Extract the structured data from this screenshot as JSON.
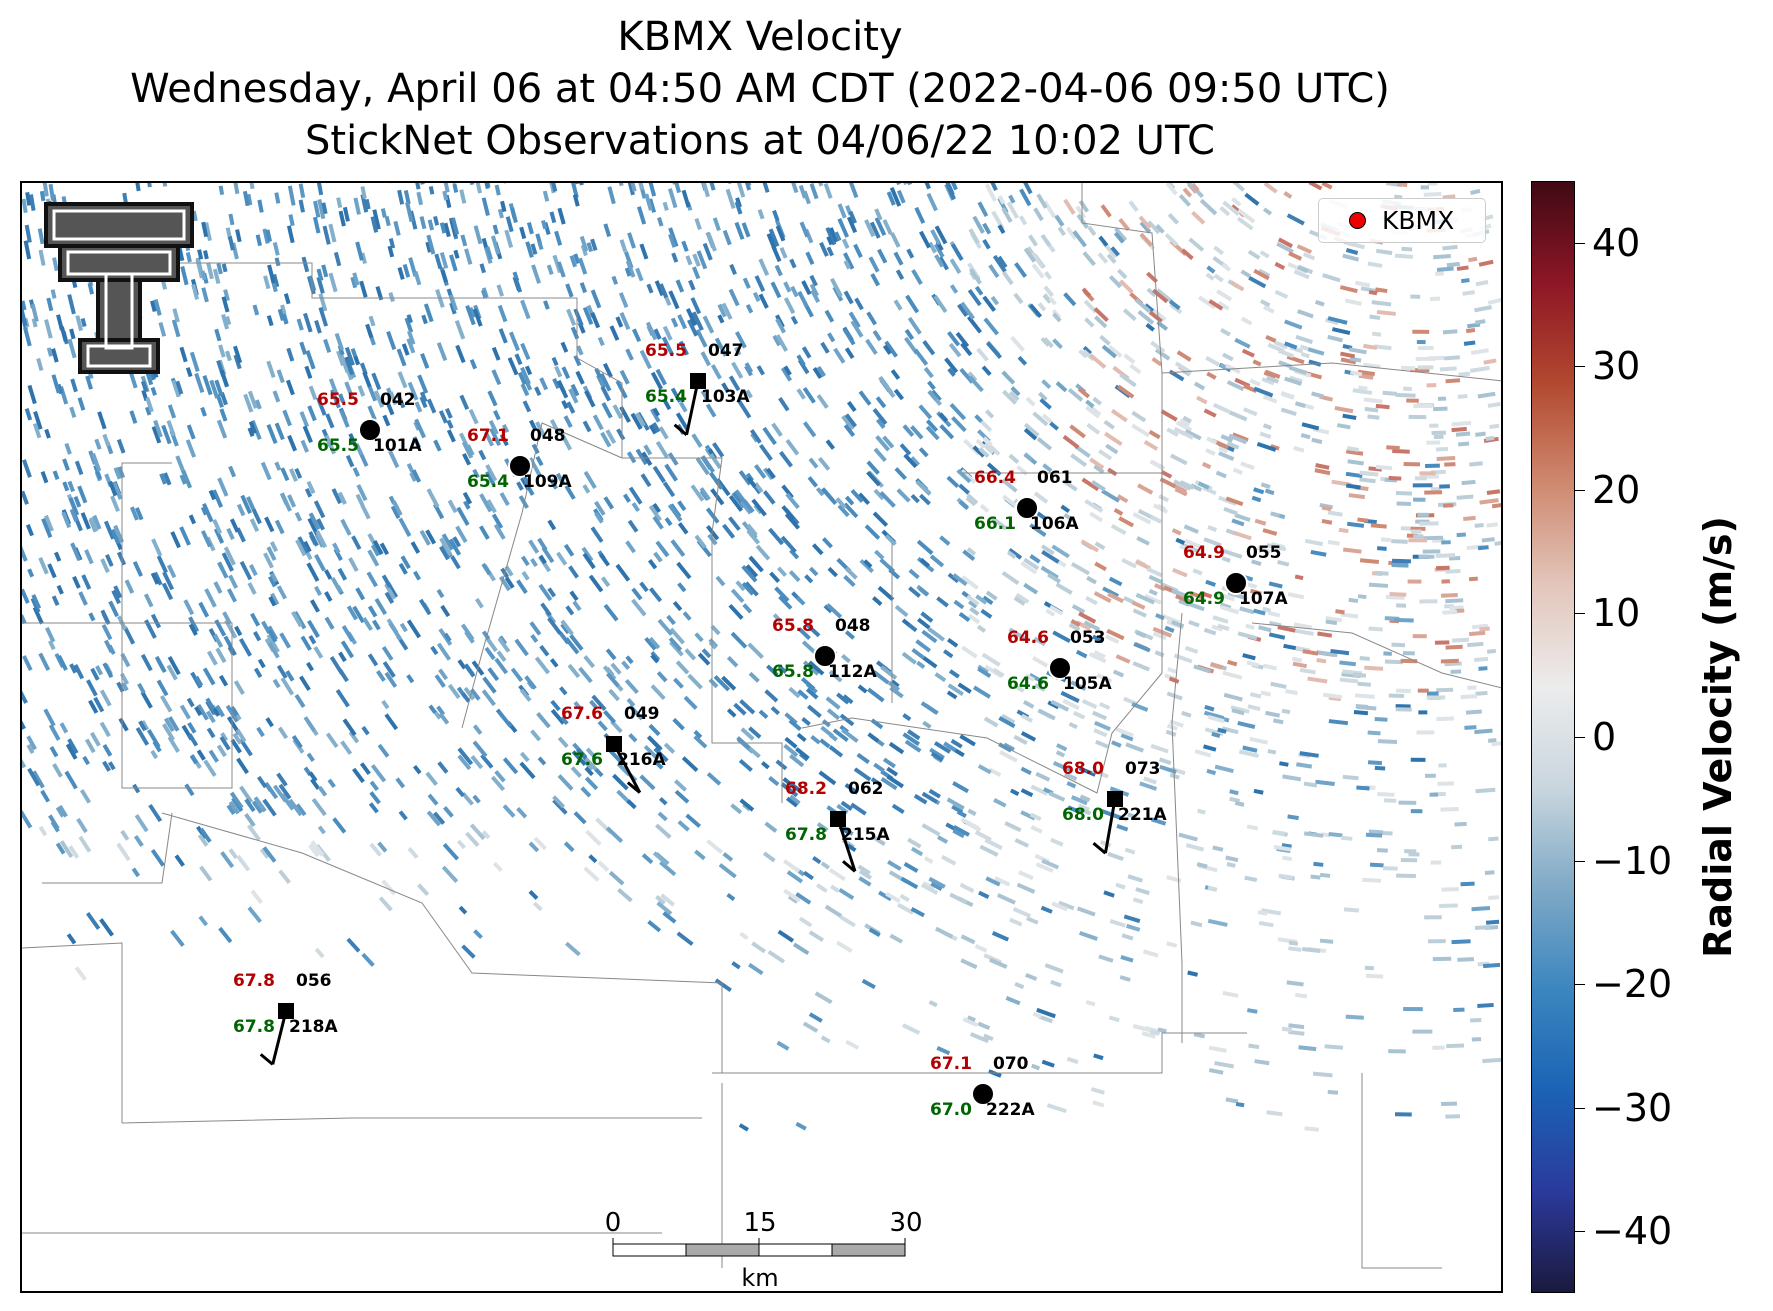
{
  "title": {
    "line1": "KBMX Velocity",
    "line2": "Wednesday, April 06 at 04:50 AM CDT (2022-04-06 09:50 UTC)",
    "line3": "StickNet Observations at 04/06/22 10:02 UTC"
  },
  "legend": {
    "label": "KBMX",
    "marker_color": "#e00000"
  },
  "colorbar": {
    "label": "Radial Velocity (m/s)",
    "min": -45,
    "max": 45,
    "ticks": [
      "40",
      "30",
      "20",
      "10",
      "0",
      "−10",
      "−20",
      "−30",
      "−40"
    ],
    "tick_values": [
      40,
      30,
      20,
      10,
      0,
      -10,
      -20,
      -30,
      -40
    ],
    "colors": [
      "#1a1a3e",
      "#2b3a9c",
      "#1b63b5",
      "#3b86bf",
      "#7fa9c6",
      "#c9d6de",
      "#ececec",
      "#e3c6bc",
      "#cf8a70",
      "#b2492f",
      "#8e1626",
      "#3f0a14"
    ]
  },
  "scalebar": {
    "labels": [
      "0",
      "15",
      "30"
    ],
    "unit": "km"
  },
  "stations": [
    {
      "id": "101A",
      "temp": "65.5",
      "dew": "65.5",
      "dir": "042",
      "marker": "circle"
    },
    {
      "id": "109A",
      "temp": "67.1",
      "dew": "65.4",
      "dir": "048",
      "marker": "circle"
    },
    {
      "id": "103A",
      "temp": "65.5",
      "dew": "65.4",
      "dir": "047",
      "marker": "square"
    },
    {
      "id": "106A",
      "temp": "66.4",
      "dew": "66.1",
      "dir": "061",
      "marker": "circle"
    },
    {
      "id": "107A",
      "temp": "64.9",
      "dew": "64.9",
      "dir": "055",
      "marker": "circle"
    },
    {
      "id": "112A",
      "temp": "65.8",
      "dew": "65.8",
      "dir": "048",
      "marker": "circle"
    },
    {
      "id": "105A",
      "temp": "64.6",
      "dew": "64.6",
      "dir": "053",
      "marker": "circle"
    },
    {
      "id": "216A",
      "temp": "67.6",
      "dew": "67.6",
      "dir": "049",
      "marker": "square"
    },
    {
      "id": "215A",
      "temp": "68.2",
      "dew": "67.8",
      "dir": "062",
      "marker": "square"
    },
    {
      "id": "221A",
      "temp": "68.0",
      "dew": "68.0",
      "dir": "073",
      "marker": "square"
    },
    {
      "id": "218A",
      "temp": "67.8",
      "dew": "67.8",
      "dir": "056",
      "marker": "square"
    },
    {
      "id": "222A",
      "temp": "67.1",
      "dew": "67.0",
      "dir": "070",
      "marker": "circle"
    }
  ]
}
